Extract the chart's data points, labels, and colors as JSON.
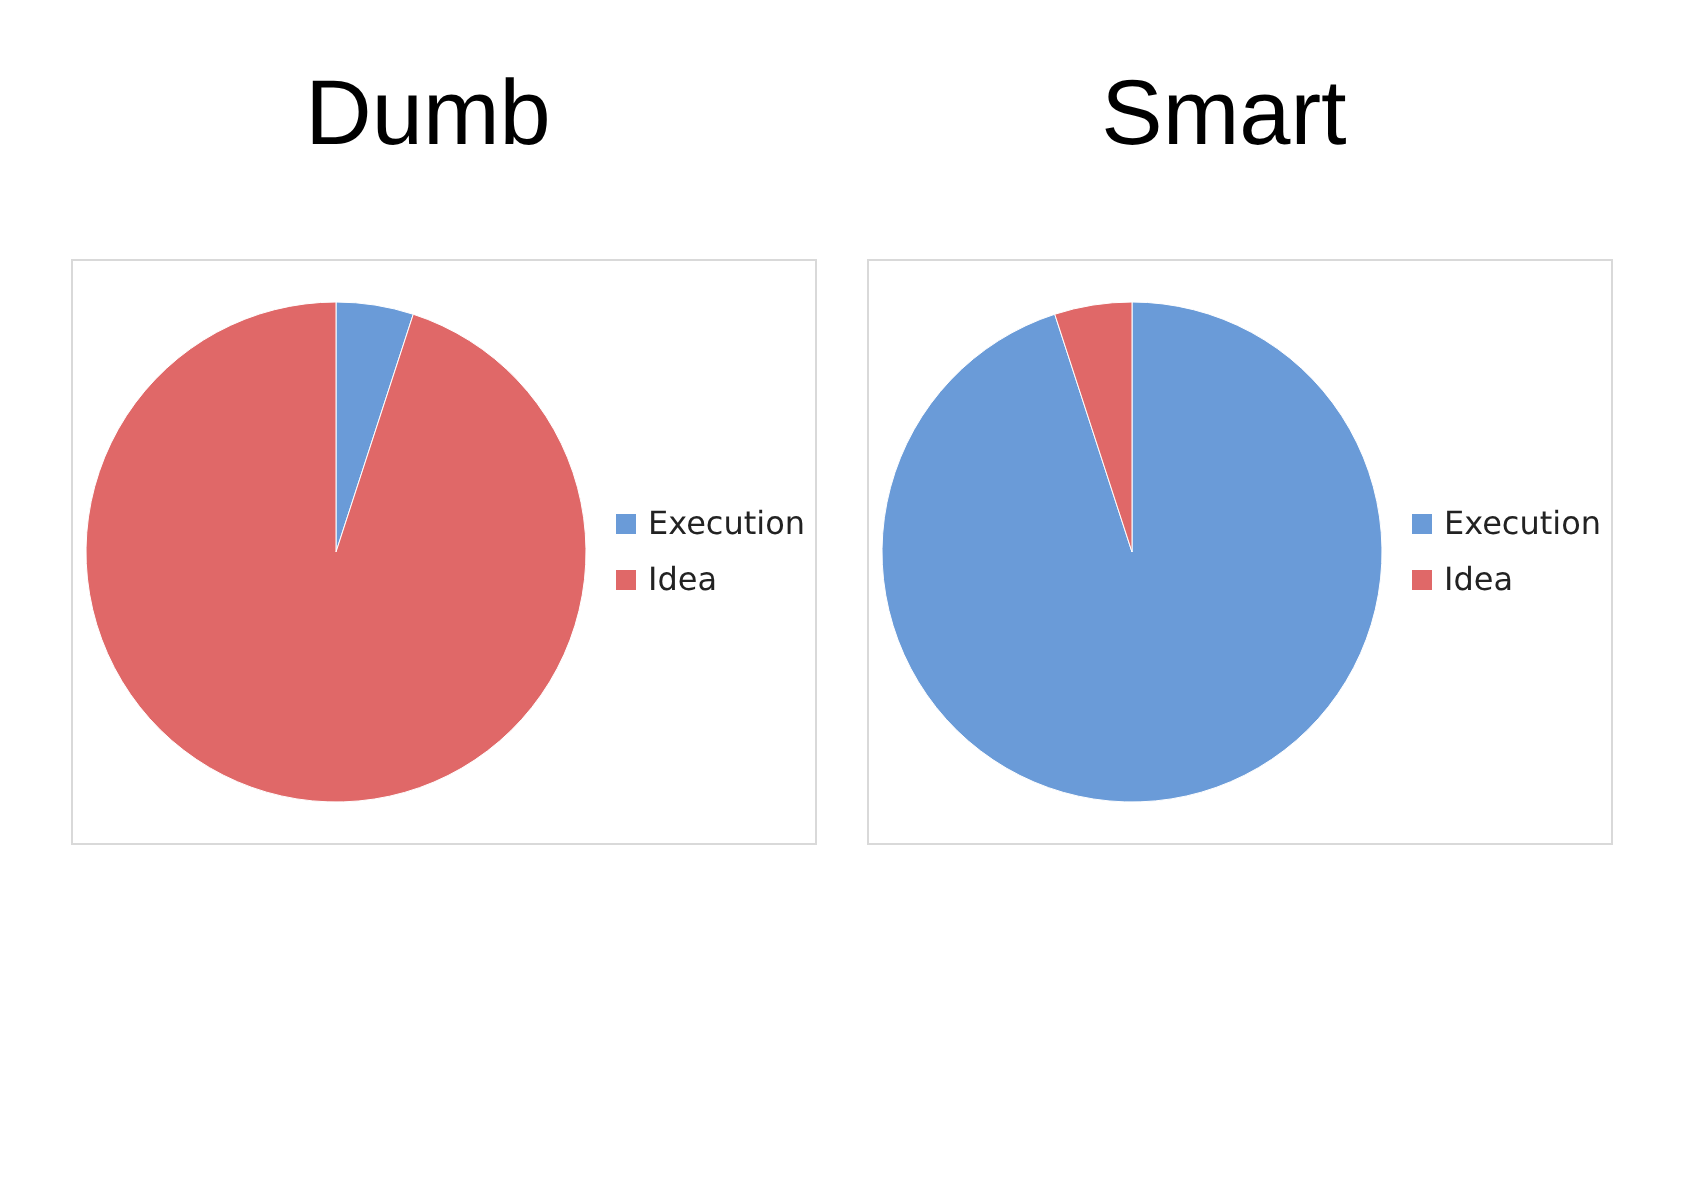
{
  "chart_data": [
    {
      "type": "pie",
      "title": "Dumb",
      "categories": [
        "Execution",
        "Idea"
      ],
      "values": [
        5,
        95
      ],
      "colors": [
        "#6a9bd8",
        "#e06868"
      ],
      "legend": "right"
    },
    {
      "type": "pie",
      "title": "Smart",
      "categories": [
        "Execution",
        "Idea"
      ],
      "values": [
        95,
        5
      ],
      "colors": [
        "#6a9bd8",
        "#e06868"
      ],
      "legend": "right"
    }
  ]
}
